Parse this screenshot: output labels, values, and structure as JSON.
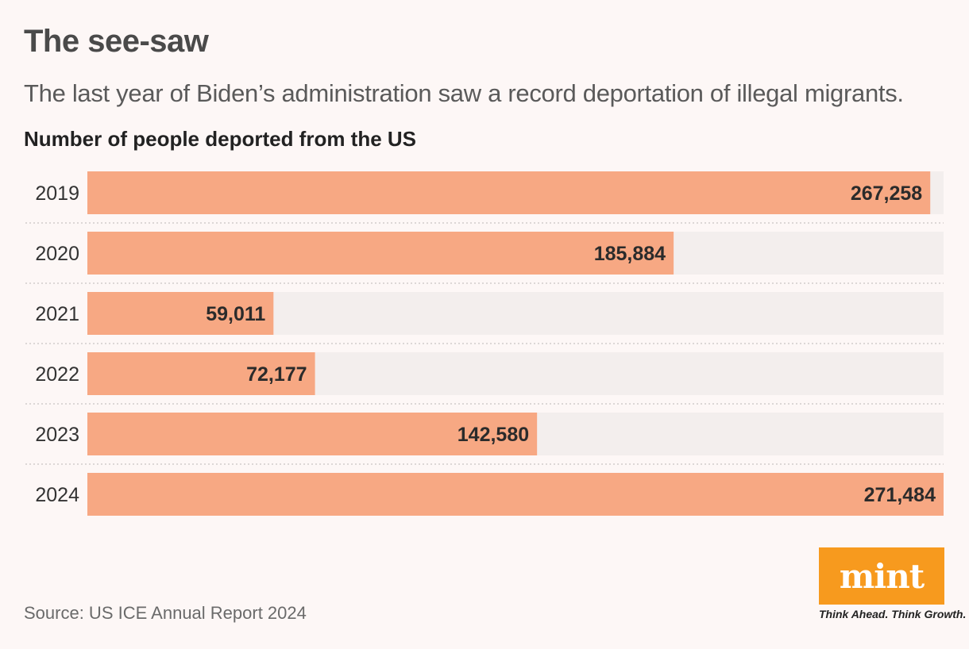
{
  "header": {
    "title": "The see-saw",
    "subtitle": "The last year of Biden’s administration saw a record deportation of illegal migrants."
  },
  "chart_data": {
    "type": "bar",
    "orientation": "horizontal",
    "title": "Number of people deported from the US",
    "categories": [
      "2019",
      "2020",
      "2021",
      "2022",
      "2023",
      "2024"
    ],
    "values": [
      267258,
      185884,
      59011,
      72177,
      142580,
      271484
    ],
    "value_labels": [
      "267,258",
      "185,884",
      "59,011",
      "72,177",
      "142,580",
      "271,484"
    ],
    "xlim": [
      0,
      271484
    ],
    "xlabel": "",
    "ylabel": "",
    "grid": false,
    "colors": {
      "bar": "#f7a883",
      "track": "#f3eeed"
    }
  },
  "footer": {
    "source": "Source: US ICE Annual Report 2024"
  },
  "brand": {
    "logo_text": "mint",
    "tagline": "Think Ahead. Think Growth.",
    "color": "#f79a1e"
  }
}
